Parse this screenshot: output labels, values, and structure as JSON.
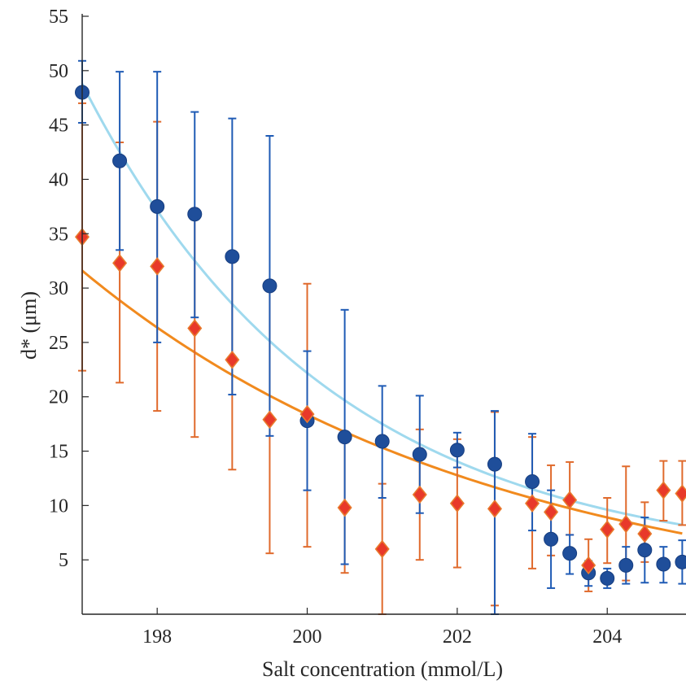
{
  "chart_data": {
    "type": "scatter",
    "title": "",
    "xlabel": "Salt concentration (mmol/L)",
    "ylabel": "d* (μm)",
    "xlim": [
      197.0,
      205.05
    ],
    "ylim": [
      0,
      55
    ],
    "xticks": [
      198,
      200,
      202,
      204
    ],
    "yticks": [
      5,
      10,
      15,
      20,
      25,
      30,
      35,
      40,
      45,
      50,
      55
    ],
    "grid": false,
    "legend": "none",
    "colors": {
      "series_a_marker": "#1F4E9A",
      "series_a_error": "#1F5BB5",
      "series_a_fit": "#9FD9EE",
      "series_b_marker_fill": "#E8392A",
      "series_b_marker_edge": "#E87A2D",
      "series_b_error": "#E06A2C",
      "series_b_fit": "#F18A1E",
      "axis": "#262626"
    },
    "series": [
      {
        "marker": "circle",
        "x": [
          197.0,
          197.5,
          198.0,
          198.5,
          199.0,
          199.5,
          200.0,
          200.5,
          201.0,
          201.5,
          202.0,
          202.5,
          203.0,
          203.25,
          203.5,
          203.75,
          204.0,
          204.25,
          204.5,
          204.75,
          205.0
        ],
        "y": [
          48.0,
          41.7,
          37.5,
          36.8,
          32.9,
          30.2,
          17.8,
          16.3,
          15.9,
          14.7,
          15.1,
          13.8,
          12.2,
          6.9,
          5.6,
          3.8,
          3.3,
          4.5,
          5.9,
          4.6,
          4.8
        ],
        "err_low": [
          45.2,
          33.5,
          25.0,
          27.3,
          20.2,
          16.4,
          11.4,
          4.6,
          10.7,
          9.3,
          13.5,
          0.0,
          7.7,
          2.4,
          3.7,
          2.6,
          2.4,
          2.8,
          2.9,
          2.9,
          2.8
        ],
        "err_high": [
          50.9,
          49.9,
          49.9,
          46.2,
          45.6,
          44.0,
          24.2,
          28.0,
          21.0,
          20.1,
          16.7,
          18.7,
          16.6,
          11.4,
          7.3,
          4.9,
          4.2,
          6.2,
          8.9,
          6.2,
          6.8
        ],
        "fit": {
          "a": 44.48,
          "b": 0.3036,
          "c": 4.3
        }
      },
      {
        "marker": "diamond",
        "x": [
          197.0,
          197.5,
          198.0,
          198.5,
          199.0,
          199.5,
          200.0,
          200.5,
          201.0,
          201.5,
          202.0,
          202.5,
          203.0,
          203.25,
          203.5,
          203.75,
          204.0,
          204.25,
          204.5,
          204.75,
          205.0
        ],
        "y": [
          34.7,
          32.3,
          32.0,
          26.3,
          23.4,
          17.9,
          18.4,
          9.8,
          6.0,
          11.0,
          10.2,
          9.7,
          10.2,
          9.4,
          10.5,
          4.5,
          7.8,
          8.3,
          7.4,
          11.4,
          11.1
        ],
        "err_low": [
          22.4,
          21.3,
          18.7,
          16.3,
          13.3,
          5.6,
          6.2,
          3.8,
          0.0,
          5.0,
          4.3,
          0.8,
          4.2,
          5.4,
          7.3,
          2.1,
          4.7,
          3.1,
          4.8,
          8.6,
          8.2
        ],
        "err_high": [
          47.0,
          43.4,
          45.3,
          36.5,
          33.3,
          30.2,
          30.4,
          16.1,
          12.0,
          17.0,
          16.1,
          18.6,
          16.3,
          13.7,
          14.0,
          6.9,
          10.7,
          13.6,
          10.3,
          14.1,
          14.1
        ],
        "fit": {
          "a": 31.6,
          "b": 0.181,
          "c": 0.0
        }
      }
    ]
  }
}
